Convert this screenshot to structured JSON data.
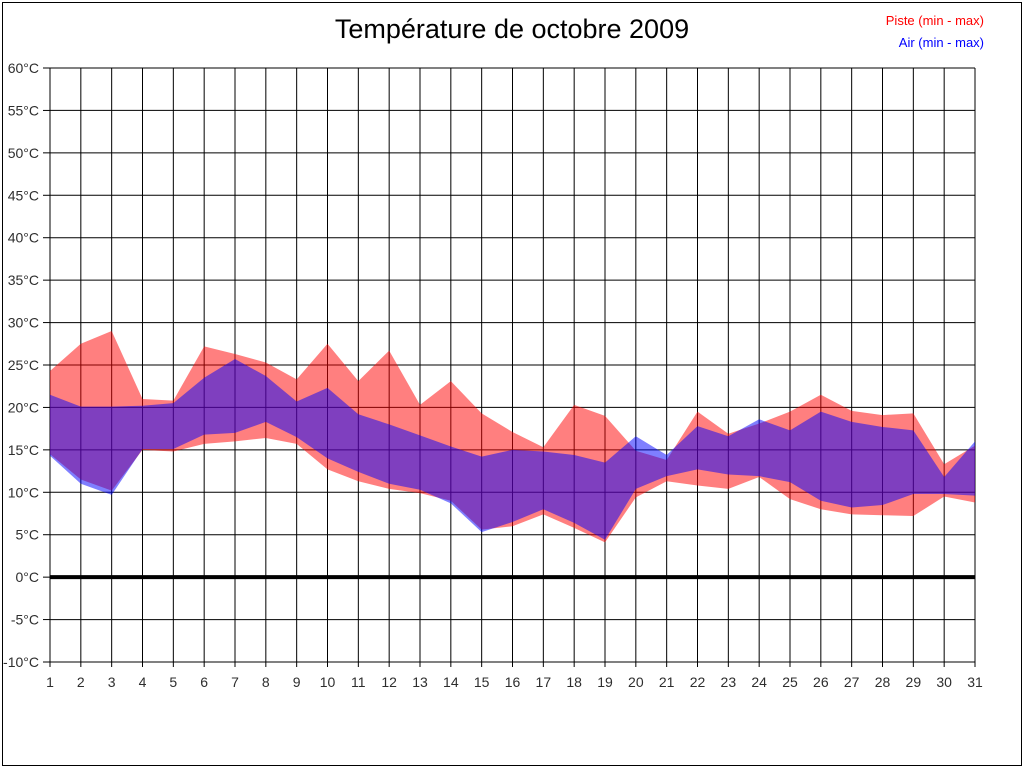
{
  "page_title": "Température de octobre 2009",
  "chart_data": {
    "type": "area",
    "title": "Température de octobre 2009",
    "xlabel": "",
    "ylabel": "",
    "x": [
      1,
      2,
      3,
      4,
      5,
      6,
      7,
      8,
      9,
      10,
      11,
      12,
      13,
      14,
      15,
      16,
      17,
      18,
      19,
      20,
      21,
      22,
      23,
      24,
      25,
      26,
      27,
      28,
      29,
      30,
      31
    ],
    "xlim": [
      1,
      31
    ],
    "ylim": [
      -10,
      60
    ],
    "ytick_step": 5,
    "ytick_suffix": "°C",
    "grid": true,
    "grid_color": "#000000",
    "zero_line": true,
    "zero_line_value": 0,
    "axis_label_color": "#2e2e2e",
    "legend_position": "top-right",
    "series": [
      {
        "name": "Piste (min - max)",
        "band": true,
        "color": "#ff0000",
        "opacity": 0.5,
        "min": [
          14.5,
          11.5,
          10.2,
          15.0,
          14.8,
          15.7,
          16.0,
          16.4,
          15.7,
          12.7,
          11.3,
          10.4,
          9.9,
          9.0,
          5.6,
          6.0,
          7.4,
          5.8,
          4.1,
          9.4,
          11.3,
          10.8,
          10.4,
          11.8,
          9.2,
          8.0,
          7.4,
          7.3,
          7.2,
          9.5,
          8.8
        ],
        "max": [
          24.3,
          27.5,
          29.0,
          21.0,
          20.8,
          27.2,
          26.3,
          25.3,
          23.3,
          27.5,
          23.1,
          26.7,
          20.3,
          23.1,
          19.3,
          17.1,
          15.3,
          20.3,
          19.0,
          14.9,
          13.8,
          19.5,
          16.9,
          18.1,
          19.5,
          21.5,
          19.6,
          19.1,
          19.3,
          13.3,
          15.5
        ]
      },
      {
        "name": "Air (min - max)",
        "band": true,
        "color": "#0000ff",
        "opacity": 0.5,
        "min": [
          14.3,
          11.0,
          9.7,
          15.1,
          15.1,
          16.8,
          17.0,
          18.3,
          16.5,
          14.0,
          12.4,
          11.0,
          10.3,
          8.7,
          5.3,
          6.5,
          8.0,
          6.4,
          4.4,
          10.4,
          11.9,
          12.7,
          12.1,
          11.9,
          11.2,
          9.0,
          8.2,
          8.5,
          9.8,
          9.8,
          9.6
        ],
        "max": [
          21.5,
          20.1,
          20.1,
          20.2,
          20.5,
          23.5,
          25.7,
          23.7,
          20.7,
          22.3,
          19.2,
          18.0,
          16.7,
          15.4,
          14.2,
          15.0,
          14.8,
          14.4,
          13.5,
          16.6,
          14.4,
          17.8,
          16.6,
          18.6,
          17.3,
          19.5,
          18.3,
          17.7,
          17.3,
          11.8,
          16.0
        ]
      }
    ]
  }
}
